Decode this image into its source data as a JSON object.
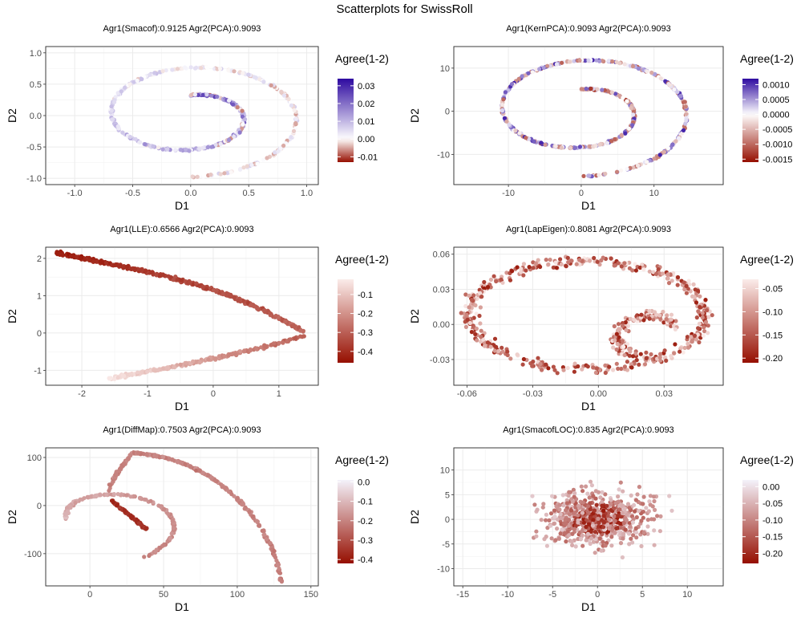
{
  "title": "Scatterplots for SwissRoll",
  "chart_data": [
    {
      "type": "scatter",
      "id": "p1",
      "title": "Agr1(Smacof):0.9125 Agr2(PCA):0.9093",
      "shape": "spiral-small",
      "xlabel": "D1",
      "ylabel": "D2",
      "xlim": [
        -1.25,
        1.1
      ],
      "ylim": [
        -1.1,
        1.1
      ],
      "xticks": [
        -1.0,
        -0.5,
        0.0,
        0.5,
        1.0
      ],
      "xtick_labels": [
        "-1.0",
        "-0.5",
        "0.0",
        "0.5",
        "1.0"
      ],
      "yticks": [
        -1.0,
        -0.5,
        0.0,
        0.5,
        1.0
      ],
      "ytick_labels": [
        "-1.0",
        "-0.5",
        "0.0",
        "0.5",
        "1.0"
      ],
      "legend": {
        "title": "Agree(1-2)",
        "min": -0.013,
        "max": 0.034,
        "ticks": [
          0.03,
          0.02,
          0.01,
          0.0,
          -0.01
        ],
        "tick_labels": [
          "0.03",
          "0.02",
          "0.01",
          "0.00",
          "-0.01"
        ],
        "palette": "diverging"
      }
    },
    {
      "type": "scatter",
      "id": "p2",
      "title": "Agr1(KernPCA):0.9093 Agr2(PCA):0.9093",
      "shape": "spiral-large",
      "xlabel": "D1",
      "ylabel": "D2",
      "xlim": [
        -17.5,
        19.5
      ],
      "ylim": [
        -17,
        15
      ],
      "xticks": [
        -10,
        0,
        10
      ],
      "xtick_labels": [
        "-10",
        "0",
        "10"
      ],
      "yticks": [
        -10,
        0,
        10
      ],
      "ytick_labels": [
        "-10",
        "0",
        "10"
      ],
      "legend": {
        "title": "Agree(1-2)",
        "min": -0.0016,
        "max": 0.0012,
        "ticks": [
          0.001,
          0.0005,
          0.0,
          -0.0005,
          -0.001,
          -0.0015
        ],
        "tick_labels": [
          "0.0010",
          "0.0005",
          "0.0000",
          "-0.0005",
          "-0.0010",
          "-0.0015"
        ],
        "palette": "diverging"
      }
    },
    {
      "type": "scatter",
      "id": "p3",
      "title": "Agr1(LLE):0.6566 Agr2(PCA):0.9093",
      "shape": "curve-lle",
      "xlabel": "D1",
      "ylabel": "D2",
      "xlim": [
        -2.55,
        1.6
      ],
      "ylim": [
        -1.4,
        2.3
      ],
      "xticks": [
        -2,
        -1,
        0,
        1
      ],
      "xtick_labels": [
        "-2",
        "-1",
        "0",
        "1"
      ],
      "yticks": [
        -1,
        0,
        1,
        2
      ],
      "ytick_labels": [
        "-1",
        "0",
        "1",
        "2"
      ],
      "legend": {
        "title": "Agree(1-2)",
        "min": -0.46,
        "max": -0.02,
        "ticks": [
          -0.1,
          -0.2,
          -0.3,
          -0.4
        ],
        "tick_labels": [
          "-0.1",
          "-0.2",
          "-0.3",
          "-0.4"
        ],
        "palette": "reds"
      }
    },
    {
      "type": "scatter",
      "id": "p4",
      "title": "Agr1(LapEigen):0.8081 Agr2(PCA):0.9093",
      "shape": "loop-lapeigen",
      "xlabel": "D1",
      "ylabel": "D2",
      "xlim": [
        -0.066,
        0.057
      ],
      "ylim": [
        -0.052,
        0.066
      ],
      "xticks": [
        -0.06,
        -0.03,
        0.0,
        0.03
      ],
      "xtick_labels": [
        "-0.06",
        "-0.03",
        "0.00",
        "0.03"
      ],
      "yticks": [
        -0.03,
        0.0,
        0.03,
        0.06
      ],
      "ytick_labels": [
        "-0.03",
        "0.00",
        "0.03",
        "0.06"
      ],
      "legend": {
        "title": "Agree(1-2)",
        "min": -0.21,
        "max": -0.03,
        "ticks": [
          -0.05,
          -0.1,
          -0.15,
          -0.2
        ],
        "tick_labels": [
          "-0.05",
          "-0.10",
          "-0.15",
          "-0.20"
        ],
        "palette": "reds"
      }
    },
    {
      "type": "scatter",
      "id": "p5",
      "title": "Agr1(DiffMap):0.7503 Agr2(PCA):0.9093",
      "shape": "curve-diffmap",
      "xlabel": "D1",
      "ylabel": "D2",
      "xlim": [
        -30,
        155
      ],
      "ylim": [
        -167,
        120
      ],
      "xticks": [
        0,
        50,
        100,
        150
      ],
      "xtick_labels": [
        "0",
        "50",
        "100",
        "150"
      ],
      "yticks": [
        -100,
        0,
        100
      ],
      "ytick_labels": [
        "-100",
        "0",
        "100"
      ],
      "legend": {
        "title": "Agree(1-2)",
        "min": -0.42,
        "max": 0.01,
        "ticks": [
          0.0,
          -0.1,
          -0.2,
          -0.3,
          -0.4
        ],
        "tick_labels": [
          "0.0",
          "-0.1",
          "-0.2",
          "-0.3",
          "-0.4"
        ],
        "palette": "reds"
      }
    },
    {
      "type": "scatter",
      "id": "p6",
      "title": "Agr1(SmacofLOC):0.835 Agr2(PCA):0.9093",
      "shape": "cloud",
      "xlabel": "D1",
      "ylabel": "D2",
      "xlim": [
        -16,
        14
      ],
      "ylim": [
        -13.5,
        14.5
      ],
      "xticks": [
        -15,
        -10,
        -5,
        0,
        5,
        10
      ],
      "xtick_labels": [
        "-15",
        "-10",
        "-5",
        "0",
        "5",
        "10"
      ],
      "yticks": [
        -10,
        -5,
        0,
        5,
        10
      ],
      "ytick_labels": [
        "-10",
        "-5",
        "0",
        "5",
        "10"
      ],
      "legend": {
        "title": "Agree(1-2)",
        "min": -0.23,
        "max": 0.02,
        "ticks": [
          0.0,
          -0.05,
          -0.1,
          -0.15,
          -0.2
        ],
        "tick_labels": [
          "0.00",
          "-0.05",
          "-0.10",
          "-0.15",
          "-0.20"
        ],
        "palette": "reds"
      }
    }
  ]
}
